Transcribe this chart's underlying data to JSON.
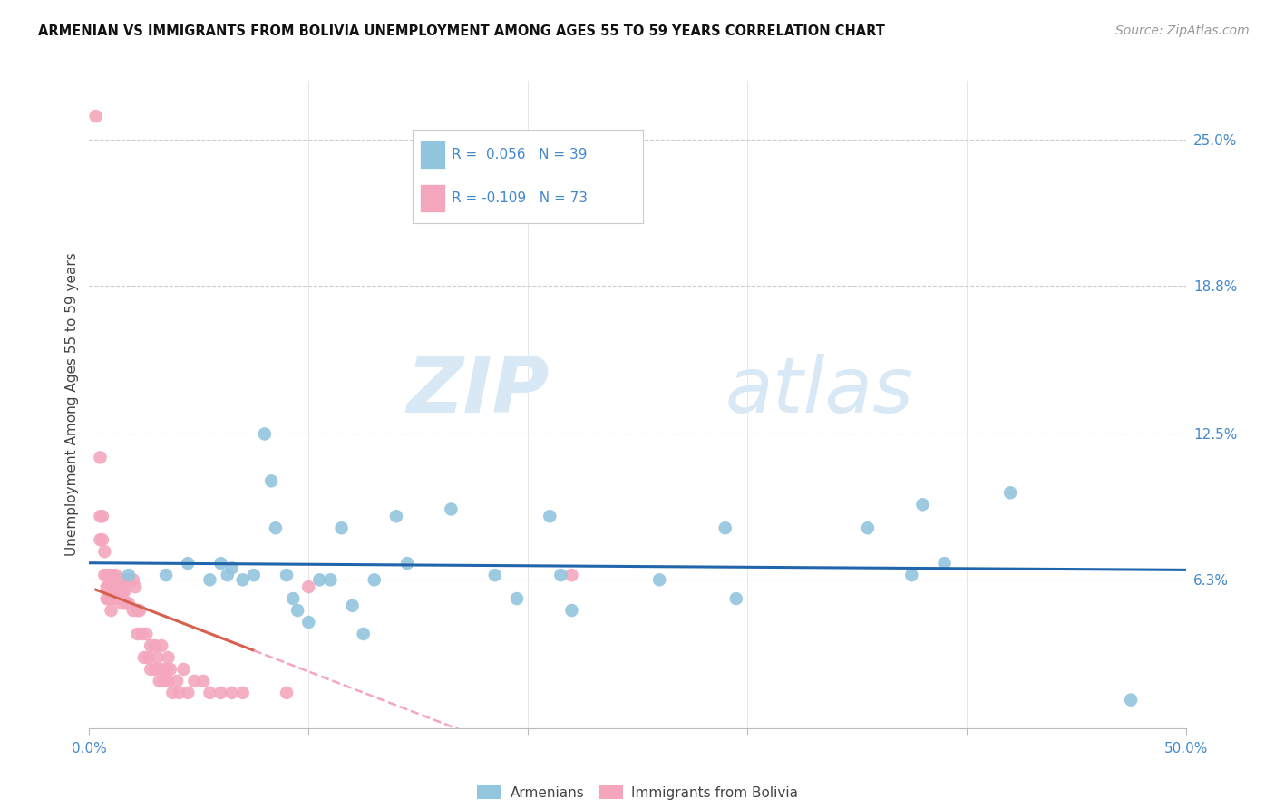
{
  "title": "ARMENIAN VS IMMIGRANTS FROM BOLIVIA UNEMPLOYMENT AMONG AGES 55 TO 59 YEARS CORRELATION CHART",
  "source": "Source: ZipAtlas.com",
  "ylabel": "Unemployment Among Ages 55 to 59 years",
  "xlim": [
    0.0,
    0.5
  ],
  "ylim": [
    0.0,
    0.275
  ],
  "xticks": [
    0.0,
    0.1,
    0.2,
    0.3,
    0.4,
    0.5
  ],
  "xticklabels": [
    "0.0%",
    "",
    "",
    "",
    "",
    "50.0%"
  ],
  "ytick_right_labels": [
    "25.0%",
    "18.8%",
    "12.5%",
    "6.3%"
  ],
  "ytick_right_values": [
    0.25,
    0.188,
    0.125,
    0.063
  ],
  "watermark_zip": "ZIP",
  "watermark_atlas": "atlas",
  "legend_armenian_R": "R =  0.056",
  "legend_armenian_N": "N = 39",
  "legend_bolivia_R": "R = -0.109",
  "legend_bolivia_N": "N = 73",
  "armenian_color": "#92c5de",
  "bolivia_color": "#f4a6bd",
  "trend_armenian_color": "#2166ac",
  "trend_bolivia_solid_color": "#d6604d",
  "trend_bolivia_dashed_color": "#f4a6bd",
  "right_tick_color": "#4488cc",
  "xtick_label_color": "#4488cc",
  "armenian_x": [
    0.018,
    0.035,
    0.045,
    0.055,
    0.06,
    0.063,
    0.065,
    0.07,
    0.075,
    0.08,
    0.083,
    0.085,
    0.09,
    0.093,
    0.095,
    0.1,
    0.105,
    0.11,
    0.115,
    0.12,
    0.125,
    0.13,
    0.14,
    0.145,
    0.165,
    0.185,
    0.195,
    0.21,
    0.215,
    0.22,
    0.26,
    0.29,
    0.295,
    0.355,
    0.375,
    0.38,
    0.39,
    0.42,
    0.475
  ],
  "armenian_y": [
    0.065,
    0.065,
    0.07,
    0.063,
    0.07,
    0.065,
    0.068,
    0.063,
    0.065,
    0.125,
    0.105,
    0.085,
    0.065,
    0.055,
    0.05,
    0.045,
    0.063,
    0.063,
    0.085,
    0.052,
    0.04,
    0.063,
    0.09,
    0.07,
    0.093,
    0.065,
    0.055,
    0.09,
    0.065,
    0.05,
    0.063,
    0.085,
    0.055,
    0.085,
    0.065,
    0.095,
    0.07,
    0.1,
    0.012
  ],
  "bolivia_x": [
    0.003,
    0.005,
    0.005,
    0.005,
    0.006,
    0.006,
    0.007,
    0.007,
    0.008,
    0.008,
    0.008,
    0.009,
    0.009,
    0.009,
    0.01,
    0.01,
    0.01,
    0.01,
    0.011,
    0.011,
    0.012,
    0.012,
    0.012,
    0.013,
    0.013,
    0.014,
    0.014,
    0.015,
    0.015,
    0.015,
    0.016,
    0.016,
    0.017,
    0.017,
    0.018,
    0.018,
    0.02,
    0.02,
    0.021,
    0.022,
    0.022,
    0.023,
    0.024,
    0.025,
    0.026,
    0.027,
    0.028,
    0.028,
    0.03,
    0.03,
    0.031,
    0.032,
    0.033,
    0.033,
    0.034,
    0.035,
    0.036,
    0.036,
    0.037,
    0.038,
    0.04,
    0.041,
    0.043,
    0.045,
    0.048,
    0.052,
    0.055,
    0.06,
    0.065,
    0.07,
    0.09,
    0.1,
    0.22
  ],
  "bolivia_y": [
    0.26,
    0.115,
    0.09,
    0.08,
    0.09,
    0.08,
    0.075,
    0.065,
    0.065,
    0.06,
    0.055,
    0.065,
    0.06,
    0.055,
    0.065,
    0.06,
    0.055,
    0.05,
    0.063,
    0.06,
    0.065,
    0.06,
    0.055,
    0.063,
    0.058,
    0.063,
    0.058,
    0.063,
    0.058,
    0.053,
    0.063,
    0.058,
    0.063,
    0.053,
    0.063,
    0.053,
    0.063,
    0.05,
    0.06,
    0.05,
    0.04,
    0.05,
    0.04,
    0.03,
    0.04,
    0.03,
    0.035,
    0.025,
    0.035,
    0.025,
    0.03,
    0.02,
    0.035,
    0.025,
    0.02,
    0.025,
    0.03,
    0.02,
    0.025,
    0.015,
    0.02,
    0.015,
    0.025,
    0.015,
    0.02,
    0.02,
    0.015,
    0.015,
    0.015,
    0.015,
    0.015,
    0.06,
    0.065
  ],
  "background_color": "#ffffff",
  "grid_color": "#cccccc"
}
